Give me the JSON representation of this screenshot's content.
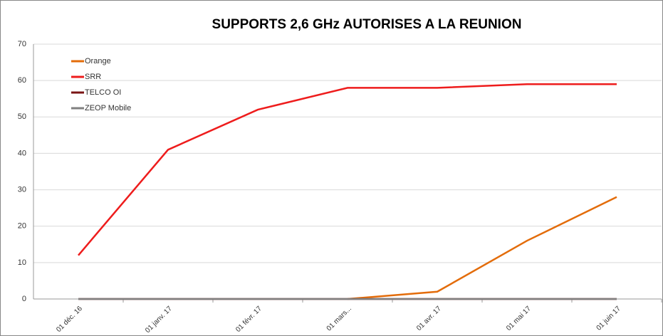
{
  "chart_data": {
    "type": "line",
    "title": "SUPPORTS 2,6 GHz AUTORISES A LA REUNION",
    "categories": [
      "01 déc. 16",
      "01 janv. 17",
      "01 févr. 17",
      "01 mars...",
      "01 avr. 17",
      "01 mai 17",
      "01 juin 17"
    ],
    "series": [
      {
        "name": "Orange",
        "color": "#e36c0a",
        "values": [
          null,
          null,
          null,
          0,
          2,
          16,
          28
        ]
      },
      {
        "name": "SRR",
        "color": "#ee1c1c",
        "values": [
          12,
          41,
          52,
          58,
          58,
          59,
          59
        ]
      },
      {
        "name": "TELCO OI",
        "color": "#7a1414",
        "values": [
          0,
          0,
          0,
          0,
          0,
          0,
          0
        ]
      },
      {
        "name": "ZEOP Mobile",
        "color": "#808080",
        "values": [
          0,
          0,
          0,
          0,
          0,
          0,
          0
        ]
      }
    ],
    "ylim": [
      0,
      70
    ],
    "yticks": [
      0,
      10,
      20,
      30,
      40,
      50,
      60,
      70
    ],
    "grid": true,
    "legend": "upper left"
  }
}
